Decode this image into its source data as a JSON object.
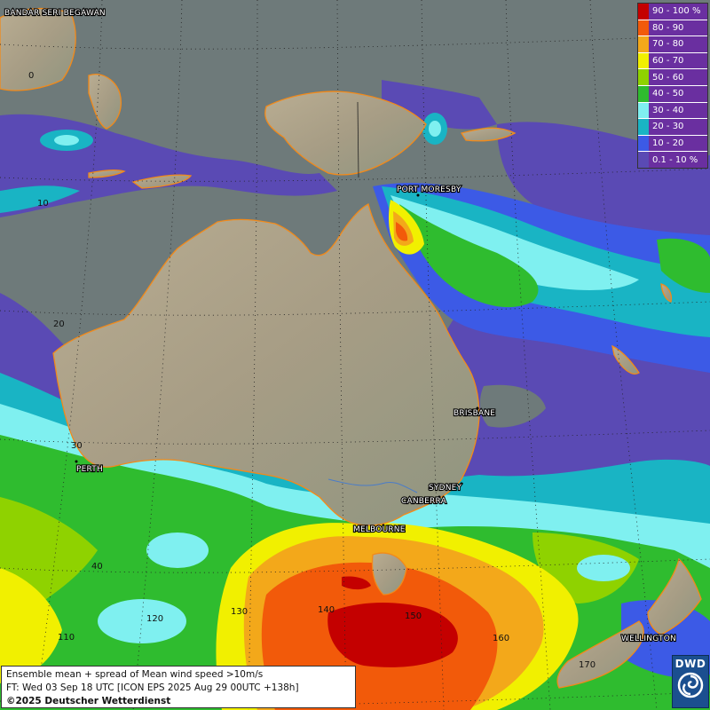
{
  "map": {
    "city_labels": [
      {
        "name": "BANDAR SERI BEGAWAN"
      },
      {
        "name": "PORT MORESBY"
      },
      {
        "name": "BRISBANE"
      },
      {
        "name": "PERTH"
      },
      {
        "name": "SYDNEY"
      },
      {
        "name": "CANBERRA"
      },
      {
        "name": "MELBOURNE"
      },
      {
        "name": "WELLINGTON"
      }
    ],
    "grid_labels": [
      "0",
      "10",
      "20",
      "30",
      "40",
      "110",
      "120",
      "130",
      "140",
      "150",
      "160",
      "170"
    ]
  },
  "legend": {
    "items": [
      {
        "label": "90 - 100 %",
        "color": "#c40000"
      },
      {
        "label": "80 - 90",
        "color": "#f25a0a"
      },
      {
        "label": "70 - 80",
        "color": "#f3a81a"
      },
      {
        "label": "60 - 70",
        "color": "#f1f000"
      },
      {
        "label": "50 - 60",
        "color": "#8fd200"
      },
      {
        "label": "40 - 50",
        "color": "#2fbc2f"
      },
      {
        "label": "30 - 40",
        "color": "#7ff0f0"
      },
      {
        "label": "20 - 30",
        "color": "#19b4c4"
      },
      {
        "label": "10 - 20",
        "color": "#3c5ae6"
      },
      {
        "label": "0.1 - 10 %",
        "color": "#5a4ab4"
      }
    ]
  },
  "info": {
    "line1": "Ensemble mean + spread of Mean wind speed >10m/s",
    "line2": "FT: Wed 03 Sep 18 UTC [ICON EPS 2025 Aug 29 00UTC +138h]",
    "line3": "©2025 Deutscher Wetterdienst"
  },
  "logo": {
    "text": "DWD"
  }
}
